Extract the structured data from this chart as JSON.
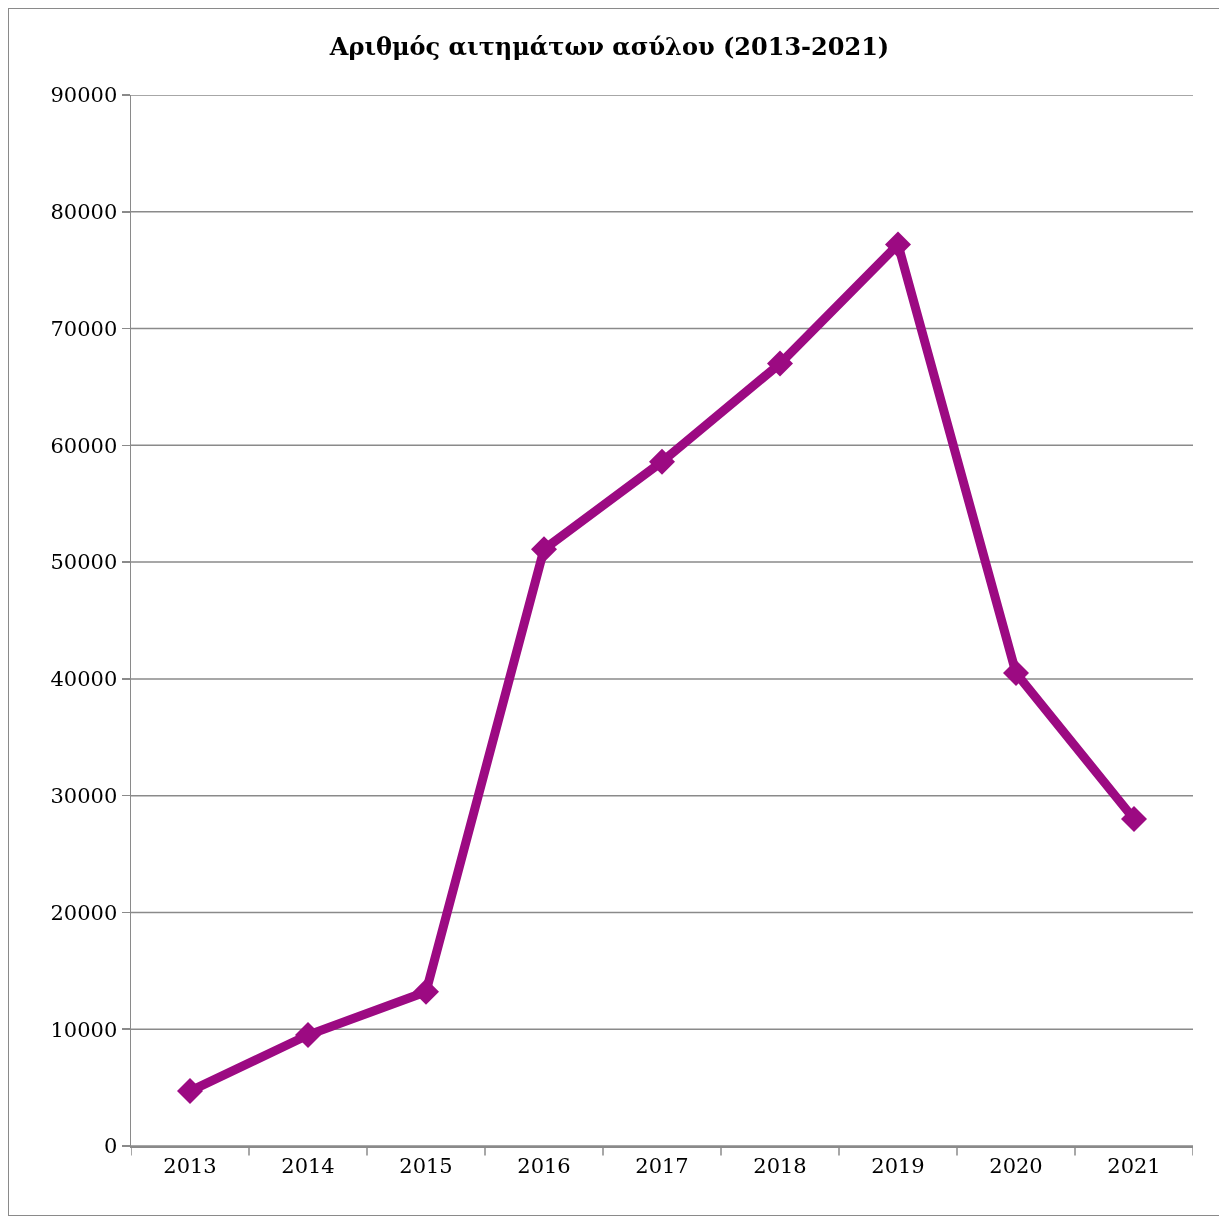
{
  "chart_data": {
    "type": "line",
    "title": "Αριθμός αιτημάτων ασύλου (2013-2021)",
    "categories": [
      "2013",
      "2014",
      "2015",
      "2016",
      "2017",
      "2018",
      "2019",
      "2020",
      "2021"
    ],
    "series": [
      {
        "color": "#9c0a82",
        "values": [
          4700,
          9500,
          13200,
          51100,
          58600,
          67000,
          77200,
          40500,
          28000
        ]
      }
    ],
    "ylim": [
      0,
      90000
    ],
    "yticks": [
      0,
      10000,
      20000,
      30000,
      40000,
      50000,
      60000,
      70000,
      80000,
      90000
    ],
    "grid": "y",
    "marker": "diamond",
    "line_style": "solid"
  }
}
